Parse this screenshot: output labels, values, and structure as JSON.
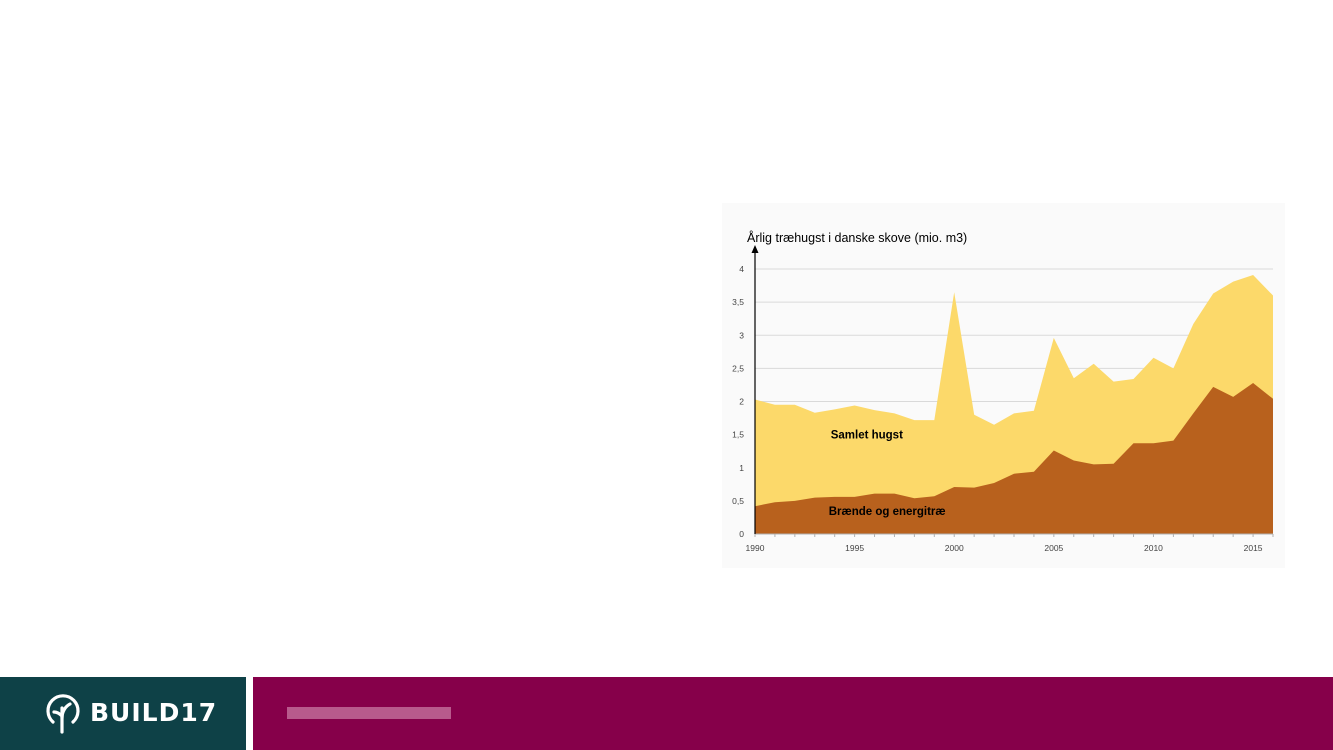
{
  "chart_data": {
    "type": "area",
    "title": "Årlig træhugst i danske skove (mio. m3)",
    "x": [
      1990,
      1991,
      1992,
      1993,
      1994,
      1995,
      1996,
      1997,
      1998,
      1999,
      2000,
      2001,
      2002,
      2003,
      2004,
      2005,
      2006,
      2007,
      2008,
      2009,
      2010,
      2011,
      2012,
      2013,
      2014,
      2015,
      2016
    ],
    "xticks": [
      1990,
      1995,
      2000,
      2005,
      2010,
      2015
    ],
    "yticks": [
      0,
      0.5,
      1,
      1.5,
      2,
      2.5,
      3,
      3.5,
      4
    ],
    "ytick_labels": [
      "0",
      "0,5",
      "1",
      "1,5",
      "2",
      "2,5",
      "3",
      "3,5",
      "4"
    ],
    "xlim": [
      1990,
      2016
    ],
    "ylim": [
      0,
      4
    ],
    "grid": true,
    "series": [
      {
        "name": "Samlet hugst",
        "color": "#fcd96a",
        "values": [
          2.03,
          1.95,
          1.95,
          1.83,
          1.88,
          1.94,
          1.87,
          1.82,
          1.72,
          1.72,
          3.65,
          1.8,
          1.65,
          1.82,
          1.86,
          2.96,
          2.35,
          2.57,
          2.3,
          2.34,
          2.66,
          2.5,
          3.17,
          3.63,
          3.81,
          3.91,
          3.6
        ]
      },
      {
        "name": "Brænde og energitræ",
        "color": "#b8611d",
        "values": [
          0.42,
          0.48,
          0.5,
          0.55,
          0.56,
          0.56,
          0.61,
          0.61,
          0.54,
          0.57,
          0.71,
          0.7,
          0.77,
          0.91,
          0.94,
          1.26,
          1.11,
          1.05,
          1.06,
          1.37,
          1.37,
          1.41,
          1.82,
          2.22,
          2.07,
          2.28,
          2.04
        ]
      }
    ]
  },
  "footer": {
    "logo_text": "BUILD17",
    "left_bg": "#0e4147",
    "right_bg": "#86004a",
    "bar_color": "#b85a8c"
  }
}
